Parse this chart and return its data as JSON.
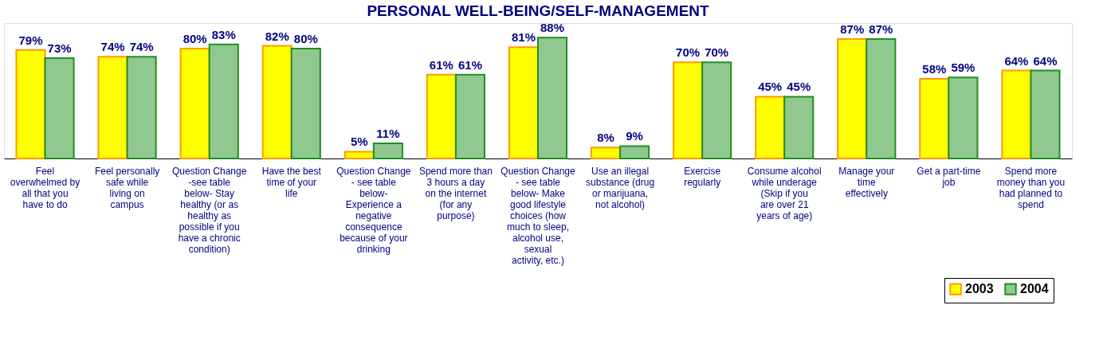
{
  "chart_data": {
    "type": "bar",
    "title": "PERSONAL WELL-BEING/SELF-MANAGEMENT",
    "categories": [
      "Feel overwhelmed by all that you have to do",
      "Feel personally safe while living on campus",
      "Question Change -see table below- Stay healthy (or as healthy as possible if you have a chronic condition)",
      "Have the best time of your life",
      "Question Change - see table below- Experience a negative consequence because of your drinking",
      "Spend more than 3 hours a day on the internet (for any purpose)",
      "Question Change - see table below- Make good lifestyle choices (how much to sleep, alcohol use, sexual activity, etc.)",
      "Use an illegal substance (drug or marijuana, not alcohol)",
      "Exercise regularly",
      "Consume alcohol while underage (Skip if you are over 21 years of age)",
      "Manage your time effectively",
      "Get a part-time job",
      "Spend more money than you had planned to spend"
    ],
    "series": [
      {
        "name": "2003",
        "color": "#ffff00",
        "values": [
          79,
          74,
          80,
          82,
          5,
          61,
          81,
          8,
          70,
          45,
          87,
          58,
          64
        ],
        "value_labels": [
          "79%",
          "74%",
          "80%",
          "82%",
          "5%",
          "61%",
          "81%",
          "8%",
          "70%",
          "45%",
          "87%",
          "58%",
          "64%"
        ]
      },
      {
        "name": "2004",
        "color": "#90c890",
        "values": [
          73,
          74,
          83,
          80,
          11,
          61,
          88,
          9,
          70,
          45,
          87,
          59,
          64
        ],
        "value_labels": [
          "73%",
          "74%",
          "83%",
          "80%",
          "11%",
          "61%",
          "88%",
          "9%",
          "70%",
          "45%",
          "87%",
          "59%",
          "64%"
        ]
      }
    ],
    "grid": false,
    "legend": "bottom right"
  }
}
